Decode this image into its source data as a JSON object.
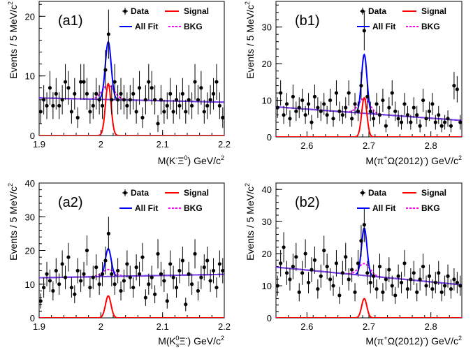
{
  "legend": {
    "data": "Data",
    "signal": "Signal",
    "all_fit": "All Fit",
    "bkg": "BKG"
  },
  "colors": {
    "data": "#000000",
    "signal": "#ff0000",
    "all_fit": "#0000ff",
    "bkg": "#ff00ff",
    "background_fit": "#7b3fe4"
  },
  "chart_data": [
    {
      "type": "scatter",
      "label": "(a1)",
      "xlabel_parts": {
        "pre": "M(K",
        "sup1": "-",
        "mid": "Ξ",
        "sup2": "0",
        "post": ") GeV/c",
        "sup3": "2"
      },
      "ylabel": "Events / 5 MeV/c",
      "ylabel_sup": "2",
      "xlim": [
        1.9,
        2.2
      ],
      "ylim": [
        0,
        22.5
      ],
      "xticks": [
        1.9,
        2.0,
        2.1,
        2.2
      ],
      "xtick_labels": [
        "1.9",
        "2",
        "2.1",
        "2.2"
      ],
      "yticks": [
        0,
        10,
        20
      ],
      "ytick_labels": [
        "0",
        "10",
        "20"
      ],
      "signal": {
        "mean": 2.012,
        "sigma": 0.0045,
        "peak": 8.7
      },
      "bkg_line": {
        "y_left": 6.3,
        "y_right": 5.6
      },
      "all_fit_peak": 15.7,
      "points": {
        "x": [
          1.9025,
          1.9075,
          1.9125,
          1.9175,
          1.9225,
          1.9275,
          1.9325,
          1.9375,
          1.9425,
          1.9475,
          1.9525,
          1.9575,
          1.9625,
          1.9675,
          1.9725,
          1.9775,
          1.9825,
          1.9875,
          1.9925,
          1.9975,
          2.0025,
          2.0075,
          2.0125,
          2.0175,
          2.0225,
          2.0275,
          2.0325,
          2.0375,
          2.0425,
          2.0475,
          2.0525,
          2.0575,
          2.0625,
          2.0675,
          2.0725,
          2.0775,
          2.0825,
          2.0875,
          2.0925,
          2.0975,
          2.1025,
          2.1075,
          2.1125,
          2.1175,
          2.1225,
          2.1275,
          2.1325,
          2.1375,
          2.1425,
          2.1475,
          2.1525,
          2.1575,
          2.1625,
          2.1675,
          2.1725,
          2.1775,
          2.1825,
          2.1875,
          2.1925,
          2.1975
        ],
        "y": [
          4,
          6,
          5,
          8,
          5,
          7,
          5,
          6,
          9,
          8,
          4,
          7,
          3,
          9,
          9,
          7,
          4,
          5,
          7,
          6,
          5,
          11,
          17,
          6,
          9,
          6,
          7,
          6,
          5,
          6,
          7,
          4,
          8,
          3,
          6,
          9,
          8,
          6,
          2,
          6,
          4,
          5,
          7,
          4,
          6,
          5,
          7,
          4,
          6,
          5,
          9,
          6,
          8,
          4,
          5,
          6,
          7,
          9,
          5,
          3
        ]
      }
    },
    {
      "type": "scatter",
      "label": "(b1)",
      "xlabel_parts": {
        "pre": "M(π",
        "sup1": "+",
        "mid": "Ω(2012)",
        "sup2": "-",
        "post": ") GeV/c",
        "sup3": "2"
      },
      "ylabel": "Events / 5 MeV/c",
      "ylabel_sup": "2",
      "xlim": [
        2.55,
        2.85
      ],
      "ylim": [
        0,
        37
      ],
      "xticks": [
        2.6,
        2.7,
        2.8
      ],
      "xtick_labels": [
        "2.6",
        "2.7",
        "2.8"
      ],
      "yticks": [
        0,
        10,
        20,
        30
      ],
      "ytick_labels": [
        "0",
        "10",
        "20",
        "30"
      ],
      "signal": {
        "mean": 2.6925,
        "sigma": 0.0042,
        "peak": 10.7
      },
      "bkg_line": {
        "y_left": 8.2,
        "y_right": 4.5
      },
      "all_fit_peak": 22.5,
      "points": {
        "x": [
          2.5525,
          2.5575,
          2.5625,
          2.5675,
          2.5725,
          2.5775,
          2.5825,
          2.5875,
          2.5925,
          2.5975,
          2.6025,
          2.6075,
          2.6125,
          2.6175,
          2.6225,
          2.6275,
          2.6325,
          2.6375,
          2.6425,
          2.6475,
          2.6525,
          2.6575,
          2.6625,
          2.6675,
          2.6725,
          2.6775,
          2.6825,
          2.6875,
          2.6925,
          2.6975,
          2.7025,
          2.7075,
          2.7125,
          2.7175,
          2.7225,
          2.7275,
          2.7325,
          2.7375,
          2.7425,
          2.7475,
          2.7525,
          2.7575,
          2.7625,
          2.7675,
          2.7725,
          2.7775,
          2.7825,
          2.7875,
          2.7925,
          2.7975,
          2.8025,
          2.8075,
          2.8125,
          2.8175,
          2.8225,
          2.8275,
          2.8325,
          2.8375,
          2.8425,
          2.8475
        ],
        "y": [
          8,
          12,
          6,
          9,
          5,
          11,
          7,
          8,
          10,
          6,
          9,
          4,
          11,
          8,
          7,
          9,
          6,
          10,
          5,
          12,
          7,
          6,
          8,
          12,
          5,
          9,
          7,
          14,
          29,
          11,
          7,
          5,
          9,
          6,
          10,
          3,
          8,
          12,
          7,
          5,
          4,
          9,
          6,
          4,
          8,
          6,
          3,
          10,
          5,
          7,
          9,
          4,
          6,
          3,
          4,
          5,
          3,
          14,
          13,
          4
        ]
      }
    },
    {
      "type": "scatter",
      "label": "(a2)",
      "xlabel_parts": {
        "pre": "M(K",
        "sub1": "s",
        "sup1": "0",
        "mid": "Ξ",
        "sup2": "-",
        "post": ") GeV/c",
        "sup3": "2"
      },
      "ylabel": "Events / 5 MeV/c",
      "ylabel_sup": "2",
      "xlim": [
        1.9,
        2.2
      ],
      "ylim": [
        0,
        40
      ],
      "xticks": [
        1.9,
        2.0,
        2.1,
        2.2
      ],
      "xtick_labels": [
        "1.9",
        "2",
        "2.1",
        "2.2"
      ],
      "yticks": [
        0,
        10,
        20,
        30,
        40
      ],
      "ytick_labels": [
        "0",
        "10",
        "20",
        "30",
        "40"
      ],
      "signal": {
        "mean": 2.012,
        "sigma": 0.0045,
        "peak": 6.5
      },
      "bkg_line": {
        "y_left": 11.9,
        "y_right": 12.9
      },
      "all_fit_peak": 20.5,
      "points": {
        "x": [
          1.9025,
          1.9075,
          1.9125,
          1.9175,
          1.9225,
          1.9275,
          1.9325,
          1.9375,
          1.9425,
          1.9475,
          1.9525,
          1.9575,
          1.9625,
          1.9675,
          1.9725,
          1.9775,
          1.9825,
          1.9875,
          1.9925,
          1.9975,
          2.0025,
          2.0075,
          2.0125,
          2.0175,
          2.0225,
          2.0275,
          2.0325,
          2.0375,
          2.0425,
          2.0475,
          2.0525,
          2.0575,
          2.0625,
          2.0675,
          2.0725,
          2.0775,
          2.0825,
          2.0875,
          2.0925,
          2.0975,
          2.1025,
          2.1075,
          2.1125,
          2.1175,
          2.1225,
          2.1275,
          2.1325,
          2.1375,
          2.1425,
          2.1475,
          2.1525,
          2.1575,
          2.1625,
          2.1675,
          2.1725,
          2.1775,
          2.1825,
          2.1875,
          2.1925,
          2.1975
        ],
        "y": [
          5,
          9,
          13,
          11,
          8,
          14,
          10,
          16,
          12,
          18,
          9,
          7,
          14,
          11,
          13,
          20,
          9,
          12,
          15,
          10,
          13,
          17,
          25,
          13,
          10,
          14,
          8,
          11,
          16,
          12,
          9,
          15,
          13,
          18,
          6,
          10,
          12,
          7,
          19,
          13,
          11,
          5,
          16,
          12,
          9,
          14,
          17,
          4,
          13,
          10,
          19,
          8,
          12,
          15,
          17,
          11,
          14,
          9,
          16,
          14
        ]
      }
    },
    {
      "type": "scatter",
      "label": "(b2)",
      "xlabel_parts": {
        "pre": "M(π",
        "sup1": "+",
        "mid": "Ω(2012)",
        "sup2": "-",
        "post": ") GeV/c",
        "sup3": "2"
      },
      "ylabel": "Events / 5 MeV/c",
      "ylabel_sup": "2",
      "xlim": [
        2.55,
        2.85
      ],
      "ylim": [
        0,
        42
      ],
      "xticks": [
        2.6,
        2.7,
        2.8
      ],
      "xtick_labels": [
        "2.6",
        "2.7",
        "2.8"
      ],
      "yticks": [
        0,
        10,
        20,
        30,
        40
      ],
      "ytick_labels": [
        "0",
        "10",
        "20",
        "30",
        "40"
      ],
      "signal": {
        "mean": 2.6925,
        "sigma": 0.0042,
        "peak": 6.0
      },
      "bkg_line": {
        "y_left": 15.8,
        "y_right": 10.3
      },
      "all_fit_peak": 28.0,
      "points": {
        "x": [
          2.5525,
          2.5575,
          2.5625,
          2.5675,
          2.5725,
          2.5775,
          2.5825,
          2.5875,
          2.5925,
          2.5975,
          2.6025,
          2.6075,
          2.6125,
          2.6175,
          2.6225,
          2.6275,
          2.6325,
          2.6375,
          2.6425,
          2.6475,
          2.6525,
          2.6575,
          2.6625,
          2.6675,
          2.6725,
          2.6775,
          2.6825,
          2.6875,
          2.6925,
          2.6975,
          2.7025,
          2.7075,
          2.7125,
          2.7175,
          2.7225,
          2.7275,
          2.7325,
          2.7375,
          2.7425,
          2.7475,
          2.7525,
          2.7575,
          2.7625,
          2.7675,
          2.7725,
          2.7775,
          2.7825,
          2.7875,
          2.7925,
          2.7975,
          2.8025,
          2.8075,
          2.8125,
          2.8175,
          2.8225,
          2.8275,
          2.8325,
          2.8375,
          2.8425,
          2.8475
        ],
        "y": [
          10,
          17,
          22,
          14,
          12,
          16,
          19,
          8,
          14,
          20,
          11,
          15,
          18,
          9,
          13,
          21,
          16,
          12,
          10,
          17,
          7,
          14,
          19,
          12,
          15,
          8,
          17,
          24,
          29,
          14,
          11,
          13,
          9,
          16,
          8,
          12,
          15,
          10,
          7,
          13,
          11,
          17,
          9,
          12,
          14,
          8,
          12,
          16,
          10,
          13,
          9,
          11,
          14,
          8,
          10,
          13,
          9,
          12,
          11,
          10
        ]
      }
    }
  ]
}
